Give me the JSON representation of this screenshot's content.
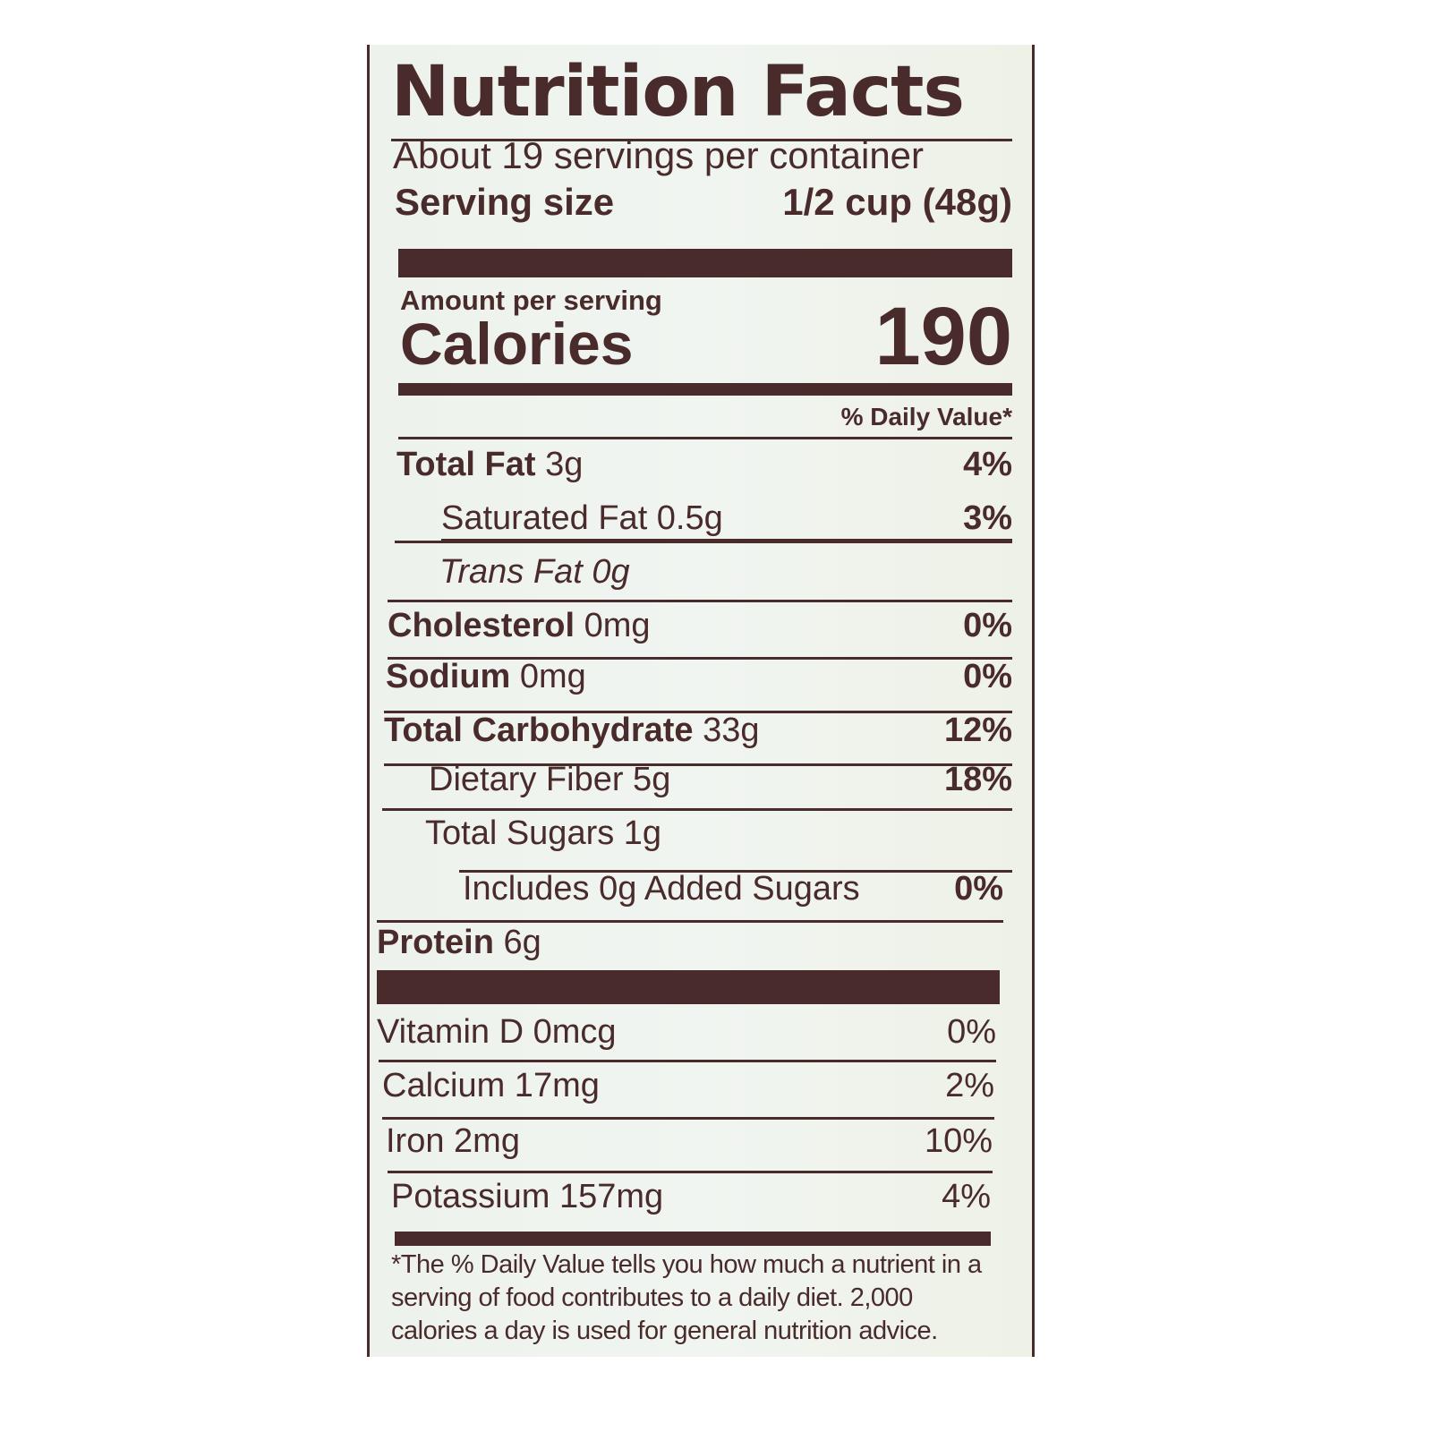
{
  "title": "Nutrition Facts",
  "servings_per_container": "About 19 servings per container",
  "serving_size": {
    "label": "Serving size",
    "value": "1/2 cup (48g)"
  },
  "amount_per_serving": "Amount per serving",
  "calories": {
    "label": "Calories",
    "value": "190"
  },
  "daily_value_header": "% Daily Value*",
  "nutrients": [
    {
      "name": "Total Fat",
      "amount": "3g",
      "dv": "4%"
    },
    {
      "name": "Saturated Fat 0.5g",
      "amount": "",
      "dv": "3%"
    },
    {
      "name": "Trans Fat 0g",
      "amount": "",
      "dv": ""
    },
    {
      "name": "Cholesterol",
      "amount": "0mg",
      "dv": "0%"
    },
    {
      "name": "Sodium",
      "amount": "0mg",
      "dv": "0%"
    },
    {
      "name": "Total Carbohydrate",
      "amount": "33g",
      "dv": "12%"
    },
    {
      "name": "Dietary Fiber 5g",
      "amount": "",
      "dv": "18%"
    },
    {
      "name": "Total Sugars 1g",
      "amount": "",
      "dv": ""
    },
    {
      "name": "Includes 0g Added Sugars",
      "amount": "",
      "dv": "0%"
    },
    {
      "name": "Protein",
      "amount": "6g",
      "dv": ""
    }
  ],
  "vitamins": [
    {
      "name": "Vitamin D 0mcg",
      "dv": "0%"
    },
    {
      "name": "Calcium 17mg",
      "dv": "2%"
    },
    {
      "name": "Iron 2mg",
      "dv": "10%"
    },
    {
      "name": "Potassium 157mg",
      "dv": "4%"
    }
  ],
  "footnote": "*The % Daily Value tells you how much a nutrient in a serving of food contributes to a daily diet. 2,000 calories a day is used for general nutrition advice.",
  "colors": {
    "ink": "#4a2b2b",
    "panel": "#eef2ec"
  }
}
